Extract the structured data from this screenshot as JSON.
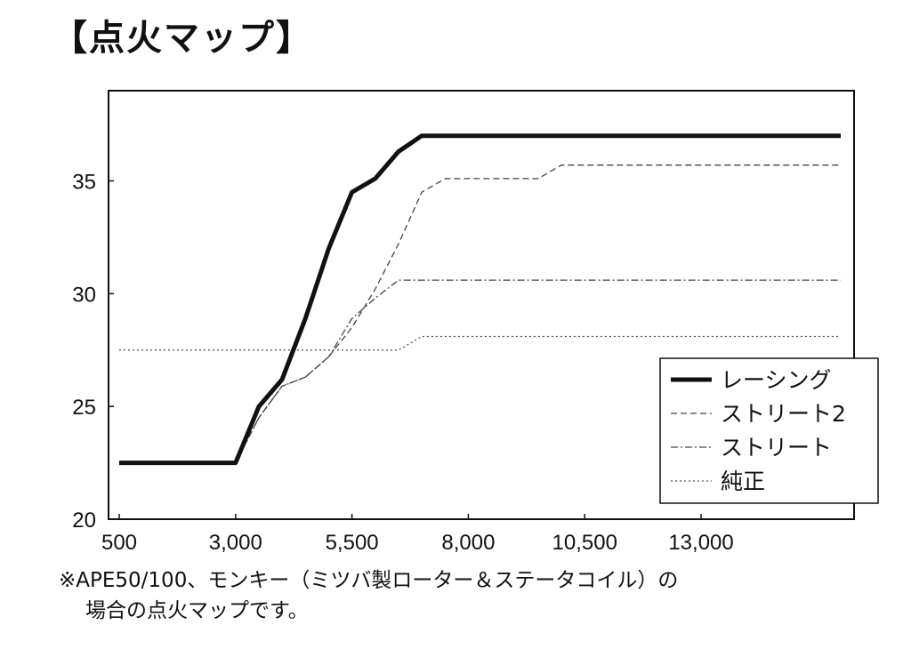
{
  "title": "【点火マップ】",
  "note": {
    "line1": "※APE50/100、モンキー（ミツバ製ローター＆ステータコイル）の",
    "line2": "場合の点火マップです。"
  },
  "chart_data": {
    "type": "line",
    "title": "【点火マップ】",
    "xlabel": "",
    "ylabel": "",
    "xlim": [
      0,
      16500
    ],
    "ylim": [
      20,
      39
    ],
    "x_ticks": [
      500,
      3000,
      5500,
      8000,
      10500,
      13000
    ],
    "x_tick_labels": [
      "500",
      "3,000",
      "5,500",
      "8,000",
      "10,500",
      "13,000"
    ],
    "y_ticks": [
      20,
      25,
      30,
      35
    ],
    "y_tick_labels": [
      "20",
      "25",
      "30",
      "35"
    ],
    "grid": false,
    "legend_position": "bottom-right",
    "series": [
      {
        "name": "レーシング",
        "style": "solid-thick",
        "color": "#111111",
        "x": [
          500,
          3000,
          3500,
          4000,
          4500,
          5000,
          5500,
          6000,
          6500,
          7000,
          16000
        ],
        "y": [
          22.5,
          22.5,
          25,
          26.2,
          28.9,
          32,
          34.5,
          35.1,
          36.3,
          37,
          37
        ]
      },
      {
        "name": "ストリート2",
        "style": "dashed",
        "color": "#444444",
        "x": [
          3000,
          3500,
          4000,
          4500,
          5000,
          5500,
          6000,
          6500,
          7000,
          7500,
          9500,
          10000,
          16000
        ],
        "y": [
          22.5,
          24.5,
          25.9,
          26.3,
          27.2,
          28.5,
          30.2,
          32.2,
          34.5,
          35.1,
          35.1,
          35.7,
          35.7
        ]
      },
      {
        "name": "ストリート",
        "style": "dash-dot",
        "color": "#444444",
        "x": [
          3000,
          3500,
          4000,
          4500,
          5000,
          5500,
          6000,
          6500,
          7000,
          16000
        ],
        "y": [
          22.5,
          24.5,
          25.9,
          26.3,
          27.2,
          28.9,
          29.8,
          30.6,
          30.6,
          30.6
        ]
      },
      {
        "name": "純正",
        "style": "dotted",
        "color": "#555555",
        "x": [
          500,
          6500,
          7000,
          16000
        ],
        "y": [
          27.5,
          27.5,
          28.1,
          28.1
        ]
      }
    ]
  }
}
